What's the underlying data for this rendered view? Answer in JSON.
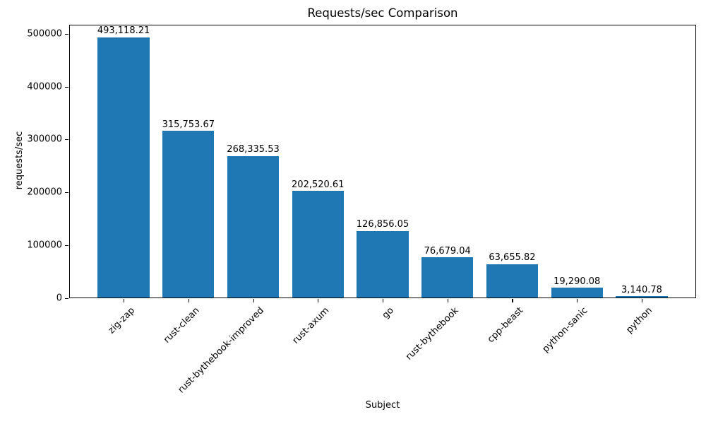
{
  "chart_data": {
    "type": "bar",
    "title": "Requests/sec Comparison",
    "xlabel": "Subject",
    "ylabel": "requests/sec",
    "categories": [
      "zig-zap",
      "rust-clean",
      "rust-bythebook-improved",
      "rust-axum",
      "go",
      "rust-bythebook",
      "cpp-beast",
      "python-sanic",
      "python"
    ],
    "values": [
      493118.21,
      315753.67,
      268335.53,
      202520.61,
      126856.05,
      76679.04,
      63655.82,
      19290.08,
      3140.78
    ],
    "value_labels": [
      "493,118.21",
      "315,753.67",
      "268,335.53",
      "202,520.61",
      "126,856.05",
      "76,679.04",
      "63,655.82",
      "19,290.08",
      "3,140.78"
    ],
    "yticks": [
      0,
      100000,
      200000,
      300000,
      400000,
      500000
    ],
    "ytick_labels": [
      "0",
      "100000",
      "200000",
      "300000",
      "400000",
      "500000"
    ],
    "ylim": [
      0,
      517774
    ],
    "xtick_rotation": 45,
    "bar_color": "#1f77b4",
    "text_color": "#000000",
    "grid": false,
    "legend": null
  }
}
